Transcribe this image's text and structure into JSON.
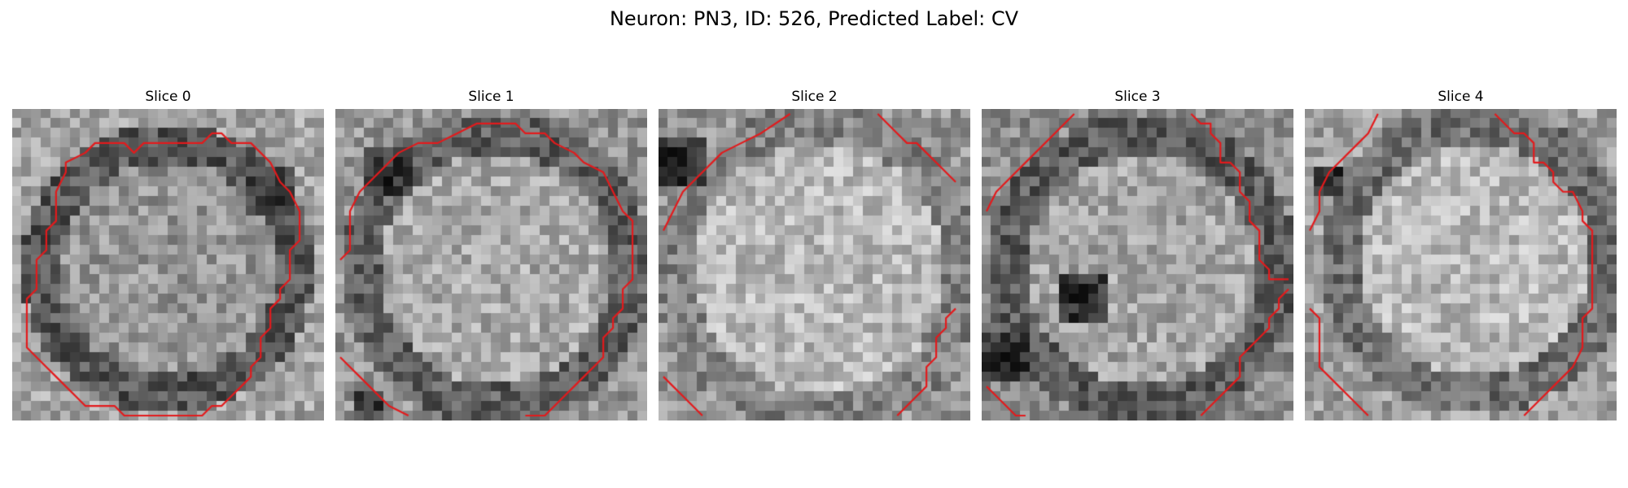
{
  "title": "Neuron: PN3, ID: 526, Predicted Label: CV",
  "contour_color": "#e31a1c",
  "colormap": "gray",
  "slices": [
    {
      "label": "Slice 0"
    },
    {
      "label": "Slice 1"
    },
    {
      "label": "Slice 2"
    },
    {
      "label": "Slice 3"
    },
    {
      "label": "Slice 4"
    }
  ]
}
